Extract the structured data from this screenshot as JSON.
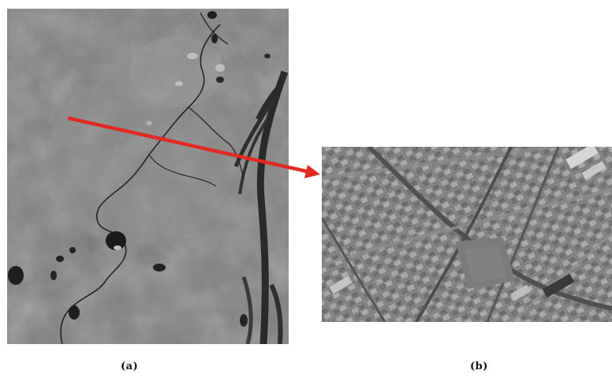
{
  "figure": {
    "panels": [
      {
        "caption": "(a)"
      },
      {
        "caption": "(b)"
      }
    ],
    "colors": {
      "arrow": "#e02a22",
      "satellite_gray": "#6f6f6f",
      "water": "#1e1e1e"
    }
  }
}
